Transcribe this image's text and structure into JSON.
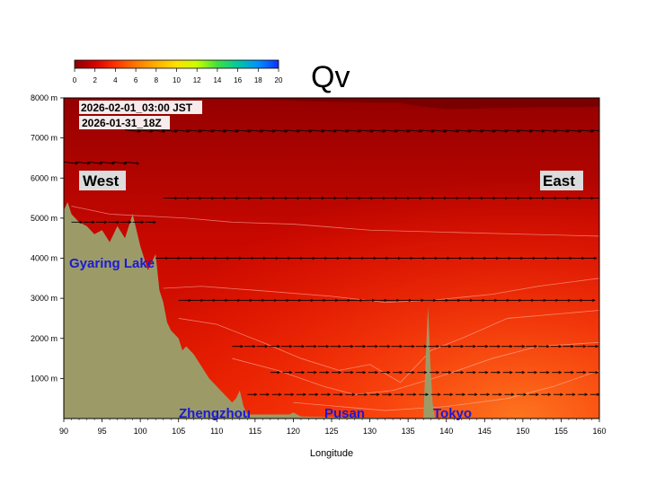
{
  "chart_data": {
    "type": "heatmap",
    "title": "Qv",
    "xlabel": "Longitude",
    "ylabel": "",
    "xlim": [
      90,
      160
    ],
    "ylim": [
      0,
      8000
    ],
    "x_ticks": [
      90,
      95,
      100,
      105,
      110,
      115,
      120,
      125,
      130,
      135,
      140,
      145,
      150,
      155,
      160
    ],
    "x_tick_labels": [
      "90",
      "95",
      "100",
      "105",
      "110",
      "115",
      "120",
      "125",
      "130",
      "135",
      "140",
      "145",
      "150",
      "155",
      "160"
    ],
    "y_ticks": [
      1000,
      2000,
      3000,
      4000,
      5000,
      6000,
      7000,
      8000
    ],
    "y_tick_labels": [
      "1000 m",
      "2000 m",
      "3000 m",
      "4000 m",
      "5000 m",
      "6000 m",
      "7000 m",
      "8000 m"
    ],
    "colorbar": {
      "ticks": [
        0,
        2,
        4,
        6,
        8,
        10,
        12,
        14,
        16,
        18,
        20
      ],
      "tick_labels": [
        "0",
        "2",
        "4",
        "6",
        "8",
        "10",
        "12",
        "14",
        "16",
        "18",
        "20"
      ],
      "colors": [
        "#8b0000",
        "#d40000",
        "#ff3300",
        "#ff7700",
        "#ffb000",
        "#ffe000",
        "#c8ff00",
        "#40e040",
        "#00c8a0",
        "#0090ff",
        "#1030ff"
      ]
    },
    "time_labels": [
      "2026-02-01_03:00 JST",
      "2026-01-31_18Z"
    ],
    "direction_labels": {
      "west": "West",
      "east": "East"
    },
    "place_labels": [
      {
        "name": "Gyaring Lake",
        "lon": 90.5,
        "height": 3900
      },
      {
        "name": "Zhengzhou",
        "lon": 105.5,
        "height": 50
      },
      {
        "name": "Pusan",
        "lon": 123.8,
        "height": 50
      },
      {
        "name": "Tokyo",
        "lon": 138.8,
        "height": 50
      }
    ],
    "terrain": {
      "color": "#9c9b68",
      "profile": [
        [
          90,
          5200
        ],
        [
          90.5,
          5400
        ],
        [
          91,
          5100
        ],
        [
          92,
          4900
        ],
        [
          93,
          4800
        ],
        [
          94,
          4600
        ],
        [
          95,
          4700
        ],
        [
          96,
          4400
        ],
        [
          97,
          4800
        ],
        [
          98,
          4500
        ],
        [
          99,
          5100
        ],
        [
          100,
          4300
        ],
        [
          101,
          3700
        ],
        [
          102,
          4100
        ],
        [
          102.5,
          3200
        ],
        [
          103,
          2900
        ],
        [
          103.5,
          2400
        ],
        [
          104,
          2200
        ],
        [
          105,
          2000
        ],
        [
          105.5,
          1700
        ],
        [
          106,
          1800
        ],
        [
          107,
          1600
        ],
        [
          108,
          1300
        ],
        [
          109,
          1000
        ],
        [
          110,
          800
        ],
        [
          111,
          600
        ],
        [
          112,
          400
        ],
        [
          112.5,
          500
        ],
        [
          113,
          700
        ],
        [
          113.5,
          300
        ],
        [
          114,
          100
        ],
        [
          119.5,
          100
        ],
        [
          120,
          150
        ],
        [
          121,
          50
        ],
        [
          137,
          0
        ],
        [
          137.3,
          1500
        ],
        [
          137.6,
          2800
        ],
        [
          137.9,
          1400
        ],
        [
          138.2,
          400
        ],
        [
          138.5,
          0
        ]
      ]
    },
    "fill_colors": {
      "upper": "#a00000",
      "mid": "#cc1000",
      "low_west": "#d81800",
      "low_east": "#ff3000",
      "warm": "#ff6a10",
      "top_band": "#7a0000"
    },
    "wind_levels": [
      {
        "height": 7200,
        "lon_start": 98,
        "lon_end": 160,
        "u": 10,
        "v": -1
      },
      {
        "height": 6400,
        "lon_start": 90,
        "lon_end": 99,
        "u": 9,
        "v": -1
      },
      {
        "height": 5500,
        "lon_start": 103,
        "lon_end": 160,
        "u": 9,
        "v": 0
      },
      {
        "height": 4900,
        "lon_start": 91,
        "lon_end": 103,
        "u": 7,
        "v": 0
      },
      {
        "height": 4000,
        "lon_start": 102,
        "lon_end": 160,
        "u": 8,
        "v": 0
      },
      {
        "height": 2950,
        "lon_start": 105,
        "lon_end": 160,
        "u": 8,
        "v": 0
      },
      {
        "height": 1800,
        "lon_start": 112,
        "lon_end": 160,
        "u": 7,
        "v": 0
      },
      {
        "height": 1150,
        "lon_start": 117,
        "lon_end": 160,
        "u": 6,
        "v": 0
      },
      {
        "height": 600,
        "lon_start": 114,
        "lon_end": 160,
        "u": 6,
        "v": 0
      }
    ]
  }
}
